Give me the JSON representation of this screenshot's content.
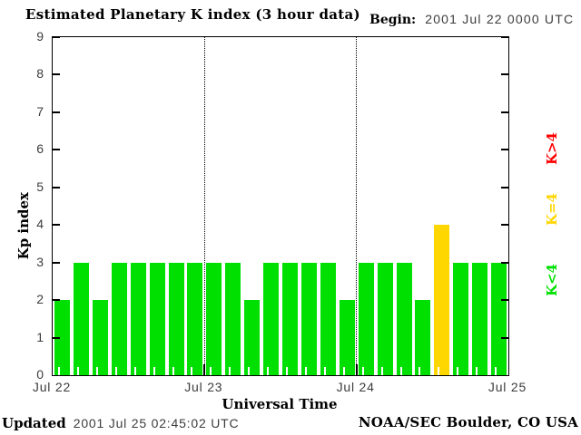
{
  "title": "Estimated Planetary K index (3 hour data)",
  "begin": {
    "label": "Begin:",
    "value": "2001 Jul 22 0000 UTC"
  },
  "footer": {
    "updated_label": "Updated",
    "updated_value": "2001 Jul 25 02:45:02 UTC",
    "source": "NOAA/SEC Boulder, CO USA"
  },
  "chart_data": {
    "type": "bar",
    "title": "Estimated Planetary K index (3 hour data)",
    "xlabel": "Universal Time",
    "ylabel": "Kp index",
    "ylim": [
      0,
      9
    ],
    "yticks": [
      0,
      1,
      2,
      3,
      4,
      5,
      6,
      7,
      8,
      9
    ],
    "interval_hours": 3,
    "bars_per_day": 8,
    "xticklabels": [
      "Jul 22",
      "Jul 23",
      "Jul 24",
      "Jul 25"
    ],
    "values": [
      2,
      3,
      2,
      3,
      3,
      3,
      3,
      3,
      3,
      3,
      2,
      3,
      3,
      3,
      3,
      2,
      3,
      3,
      3,
      2,
      4,
      3,
      3,
      3
    ],
    "grid": "dotted vertical lines at day boundaries",
    "colors": {
      "low": "#00E000",
      "mid": "#FFD700",
      "high": "#FF0000"
    },
    "legend_position": "right, rotated 90deg",
    "legend": [
      {
        "label": "K>4",
        "color": "#FF0000"
      },
      {
        "label": "K=4",
        "color": "#FFD700"
      },
      {
        "label": "K<4",
        "color": "#00E000"
      }
    ]
  }
}
